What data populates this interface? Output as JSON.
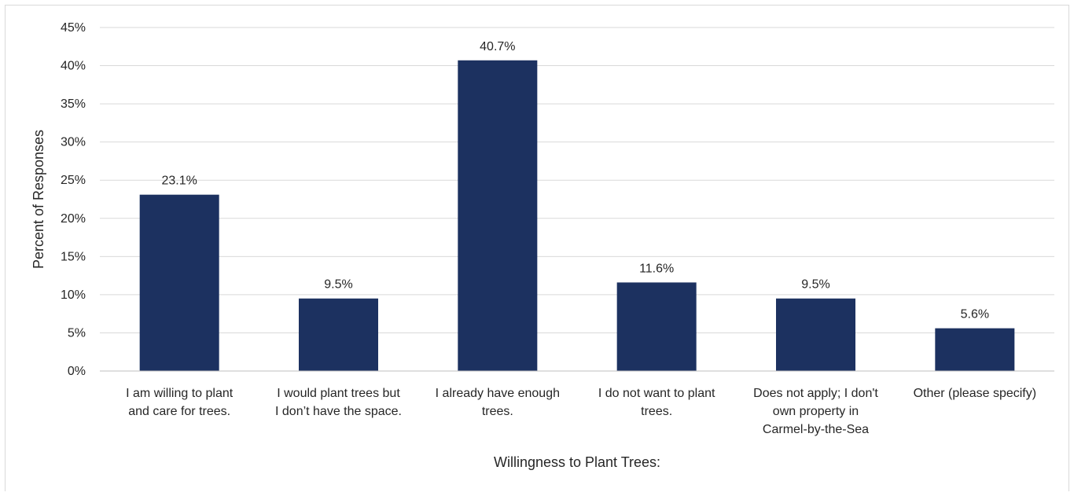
{
  "chart_data": {
    "type": "bar",
    "title": "",
    "xlabel": "Willingness to Plant Trees:",
    "ylabel": "Percent of Responses",
    "categories": [
      [
        "I am willing to plant",
        "and care for trees."
      ],
      [
        "I would plant trees but",
        "I don’t have the space."
      ],
      [
        "I already have enough",
        "trees."
      ],
      [
        "I do not want to plant",
        "trees."
      ],
      [
        "Does not apply; I don't",
        "own property in",
        "Carmel-by-the-Sea"
      ],
      [
        "Other (please specify)"
      ]
    ],
    "values": [
      23.1,
      9.5,
      40.7,
      11.6,
      9.5,
      5.6
    ],
    "data_labels": [
      "23.1%",
      "9.5%",
      "40.7%",
      "11.6%",
      "9.5%",
      "5.6%"
    ],
    "ylim": [
      0,
      45
    ],
    "yticks": [
      0,
      5,
      10,
      15,
      20,
      25,
      30,
      35,
      40,
      45
    ],
    "ytick_labels": [
      "0%",
      "5%",
      "10%",
      "15%",
      "20%",
      "25%",
      "30%",
      "35%",
      "40%",
      "45%"
    ],
    "grid": true,
    "legend": "none",
    "bar_color": "#1c3160",
    "grid_color": "#d9d9d9"
  }
}
